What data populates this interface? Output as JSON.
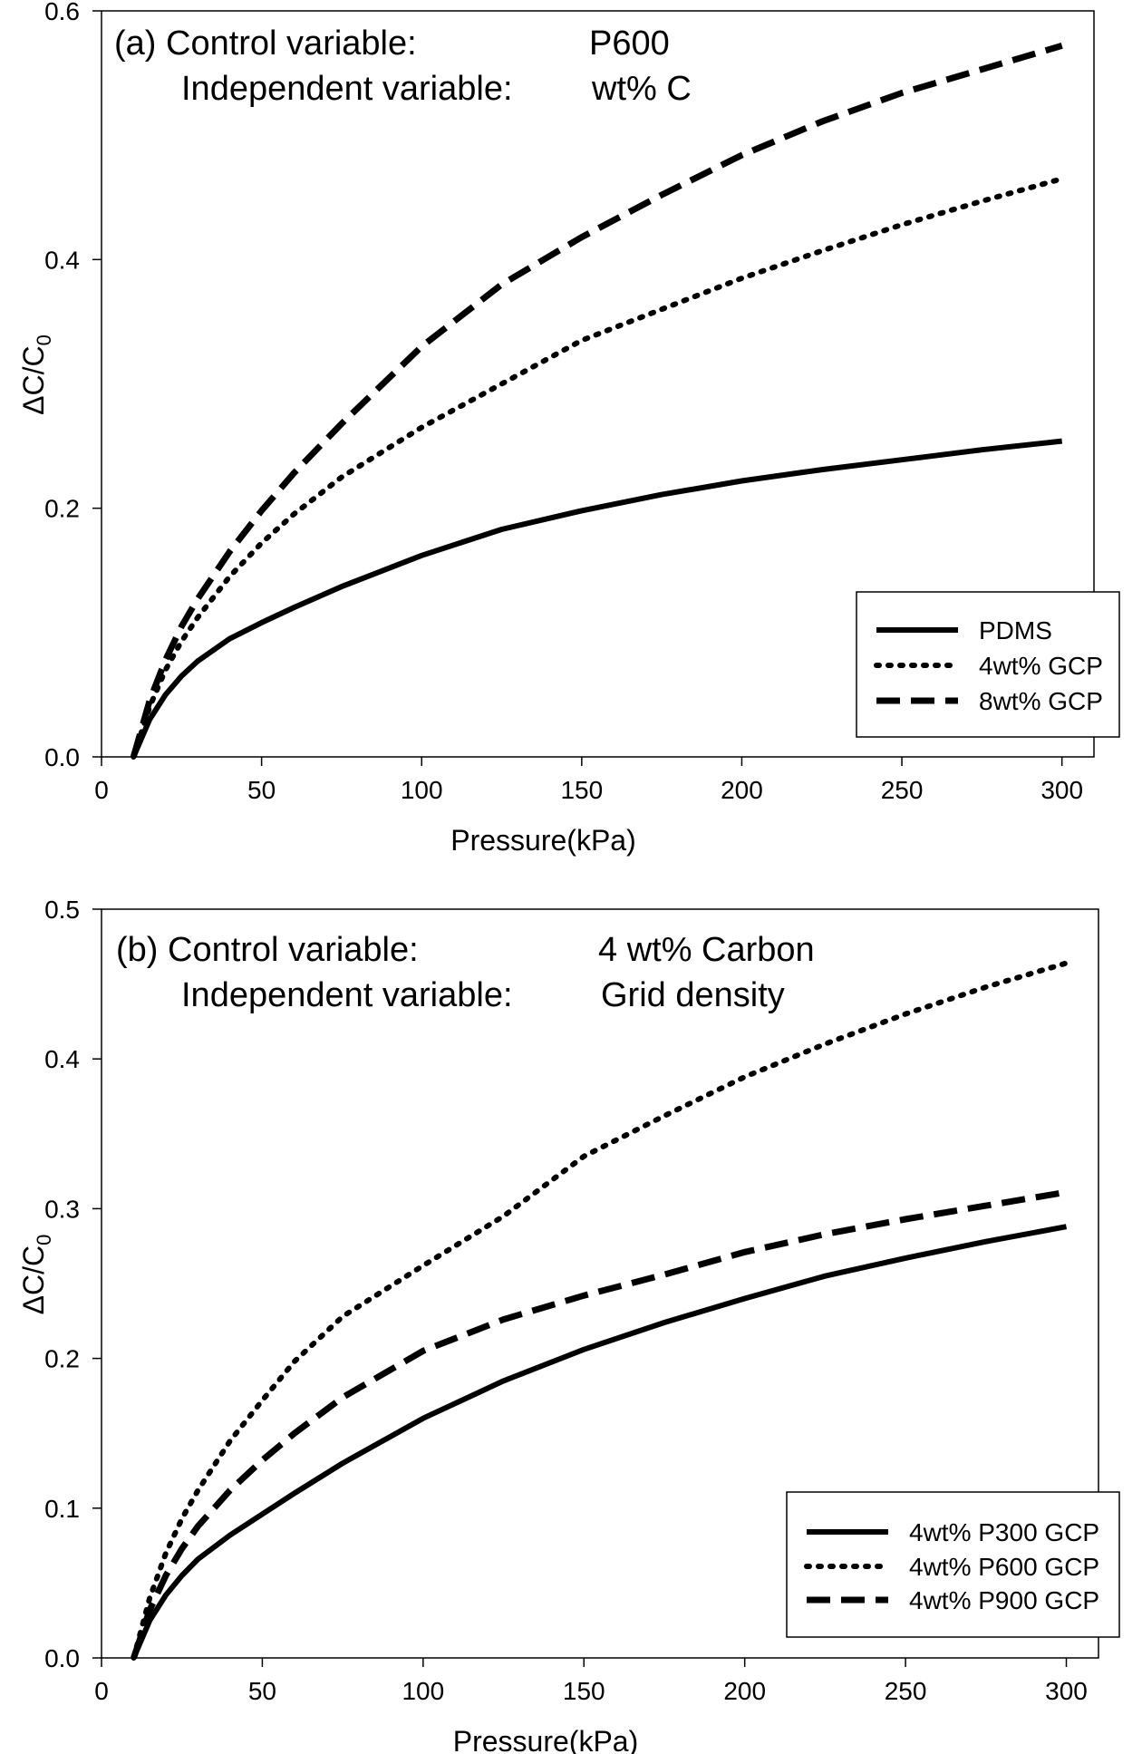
{
  "chart_data": [
    {
      "type": "line",
      "panel": "a",
      "annotation_line1_label": "(a) Control variable:",
      "annotation_line1_value": "P600",
      "annotation_line2_label": "Independent variable:",
      "annotation_line2_value": "wt% C",
      "xlabel": "Pressure(kPa)",
      "ylabel": "ΔC/C0",
      "ylabel_main": "ΔC/C",
      "ylabel_sub": "0",
      "xlim": [
        0,
        310
      ],
      "ylim": [
        0,
        0.6
      ],
      "xticks": [
        0,
        50,
        100,
        150,
        200,
        250,
        300
      ],
      "xtick_labels": [
        "0",
        "50",
        "100",
        "150",
        "200",
        "250",
        "300"
      ],
      "yticks": [
        0,
        0.2,
        0.4,
        0.6
      ],
      "ytick_labels": [
        "0.0",
        "0.2",
        "0.4",
        "0.6"
      ],
      "grid": false,
      "legend": "bottom-right",
      "series": [
        {
          "name": "PDMS",
          "style": "solid",
          "x": [
            10,
            15,
            20,
            25,
            30,
            40,
            50,
            60,
            75,
            100,
            125,
            150,
            175,
            200,
            225,
            250,
            275,
            300
          ],
          "values": [
            0,
            0.03,
            0.05,
            0.065,
            0.077,
            0.095,
            0.108,
            0.12,
            0.137,
            0.162,
            0.183,
            0.198,
            0.211,
            0.222,
            0.231,
            0.239,
            0.247,
            0.254
          ]
        },
        {
          "name": "4wt% GCP",
          "style": "dotted",
          "x": [
            10,
            15,
            20,
            25,
            30,
            40,
            50,
            60,
            75,
            100,
            125,
            150,
            175,
            200,
            225,
            250,
            275,
            300
          ],
          "values": [
            0,
            0.04,
            0.07,
            0.093,
            0.112,
            0.145,
            0.172,
            0.195,
            0.225,
            0.265,
            0.3,
            0.335,
            0.36,
            0.385,
            0.407,
            0.428,
            0.447,
            0.465
          ]
        },
        {
          "name": "8wt% GCP",
          "style": "dashed",
          "x": [
            10,
            15,
            20,
            25,
            30,
            40,
            50,
            60,
            75,
            100,
            125,
            150,
            175,
            200,
            225,
            250,
            275,
            300
          ],
          "values": [
            0,
            0.045,
            0.078,
            0.105,
            0.127,
            0.165,
            0.198,
            0.228,
            0.268,
            0.33,
            0.38,
            0.418,
            0.452,
            0.484,
            0.511,
            0.534,
            0.553,
            0.572
          ]
        }
      ]
    },
    {
      "type": "line",
      "panel": "b",
      "annotation_line1_label": "(b) Control variable:",
      "annotation_line1_value": "4 wt% Carbon",
      "annotation_line2_label": "Independent variable:",
      "annotation_line2_value": "Grid density",
      "xlabel": "Pressure(kPa)",
      "ylabel": "ΔC/C0",
      "ylabel_main": "ΔC/C",
      "ylabel_sub": "0",
      "xlim": [
        0,
        310
      ],
      "ylim": [
        0,
        0.5
      ],
      "xticks": [
        0,
        50,
        100,
        150,
        200,
        250,
        300
      ],
      "xtick_labels": [
        "0",
        "50",
        "100",
        "150",
        "200",
        "250",
        "300"
      ],
      "yticks": [
        0,
        0.1,
        0.2,
        0.3,
        0.4,
        0.5
      ],
      "ytick_labels": [
        "0.0",
        "0.1",
        "0.2",
        "0.3",
        "0.4",
        "0.5"
      ],
      "grid": false,
      "legend": "bottom-right",
      "series": [
        {
          "name": "4wt% P300 GCP",
          "style": "solid",
          "x": [
            10,
            15,
            20,
            25,
            30,
            40,
            50,
            60,
            75,
            100,
            125,
            150,
            175,
            200,
            225,
            250,
            275,
            300
          ],
          "values": [
            0,
            0.025,
            0.042,
            0.055,
            0.066,
            0.082,
            0.096,
            0.11,
            0.13,
            0.16,
            0.185,
            0.206,
            0.224,
            0.24,
            0.255,
            0.267,
            0.278,
            0.288
          ]
        },
        {
          "name": "4wt% P600 GCP",
          "style": "dotted",
          "x": [
            10,
            15,
            20,
            25,
            30,
            40,
            50,
            60,
            75,
            100,
            125,
            150,
            175,
            200,
            225,
            250,
            275,
            300
          ],
          "values": [
            0,
            0.04,
            0.07,
            0.093,
            0.112,
            0.145,
            0.172,
            0.198,
            0.228,
            0.262,
            0.295,
            0.335,
            0.362,
            0.388,
            0.41,
            0.43,
            0.448,
            0.464
          ]
        },
        {
          "name": "4wt% P900 GCP",
          "style": "dashed",
          "x": [
            10,
            15,
            20,
            25,
            30,
            40,
            50,
            60,
            75,
            100,
            125,
            150,
            175,
            200,
            225,
            250,
            275,
            300
          ],
          "values": [
            0,
            0.032,
            0.055,
            0.073,
            0.088,
            0.112,
            0.132,
            0.15,
            0.174,
            0.205,
            0.226,
            0.242,
            0.256,
            0.271,
            0.283,
            0.293,
            0.302,
            0.311
          ]
        }
      ]
    }
  ]
}
